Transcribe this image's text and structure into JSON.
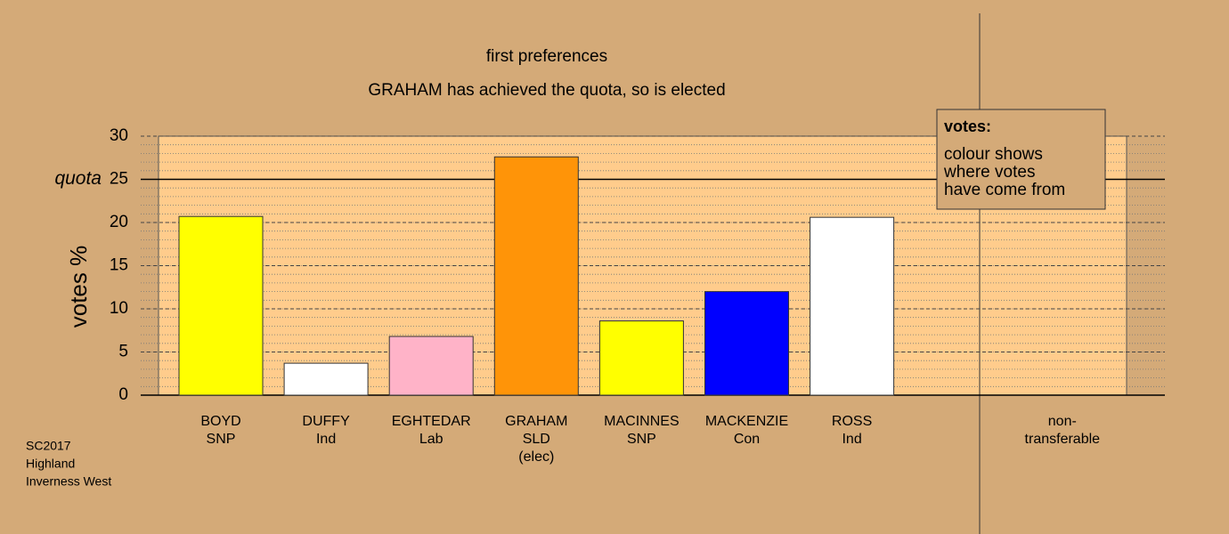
{
  "chart_data": {
    "type": "bar",
    "title": "first preferences",
    "subtitle": "GRAHAM has achieved the quota, so is elected",
    "y_label": "votes %",
    "categories": [
      [
        "BOYD",
        "SNP"
      ],
      [
        "DUFFY",
        "Ind"
      ],
      [
        "EGHTEDAR",
        "Lab"
      ],
      [
        "GRAHAM",
        "SLD",
        "(elec)"
      ],
      [
        "MACINNES",
        "SNP"
      ],
      [
        "MACKENZIE",
        "Con"
      ],
      [
        "ROSS",
        "Ind"
      ],
      [
        "non-",
        "transferable"
      ]
    ],
    "values": [
      20.7,
      3.7,
      6.8,
      27.6,
      8.6,
      12.0,
      20.6,
      0
    ],
    "colors": [
      "#ffff00",
      "#ffffff",
      "#ffb3c8",
      "#ff9408",
      "#ffff00",
      "#0000ff",
      "#ffffff",
      "#ffffff"
    ],
    "ylim": [
      0,
      30
    ],
    "yticks": [
      0,
      5,
      10,
      15,
      20,
      25,
      30
    ],
    "grid": true,
    "quota": {
      "value": 25,
      "label": "quota"
    },
    "legend": {
      "title": "votes:",
      "lines": [
        "colour shows",
        "where votes",
        "have come from"
      ]
    },
    "footnote": [
      "SC2017",
      "Highland",
      "Inverness West"
    ]
  }
}
